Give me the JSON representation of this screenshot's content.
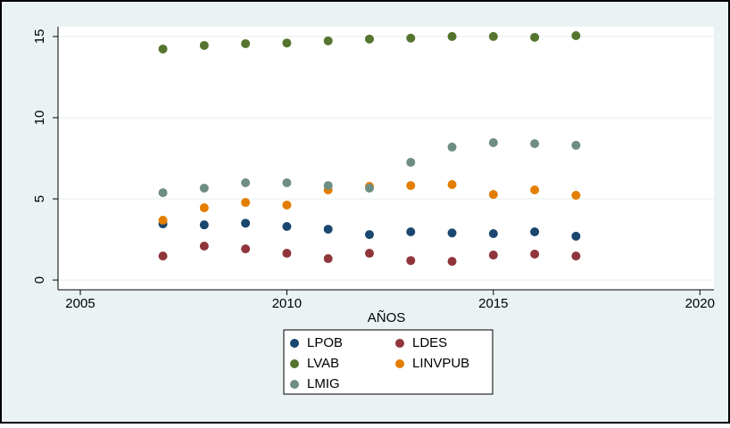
{
  "chart_data": {
    "type": "scatter",
    "x_label": "AÑOS",
    "x": [
      2007,
      2008,
      2009,
      2010,
      2011,
      2012,
      2013,
      2014,
      2015,
      2016,
      2017
    ],
    "series": [
      {
        "name": "LPOB",
        "color": "#1a476f",
        "values": [
          3.46,
          3.4,
          3.5,
          3.3,
          3.13,
          2.8,
          2.97,
          2.9,
          2.86,
          2.97,
          2.7
        ]
      },
      {
        "name": "LDES",
        "color": "#90353b",
        "values": [
          1.48,
          2.09,
          1.92,
          1.65,
          1.32,
          1.65,
          1.2,
          1.15,
          1.54,
          1.6,
          1.48
        ]
      },
      {
        "name": "LVAB",
        "color": "#55752f",
        "values": [
          14.23,
          14.45,
          14.56,
          14.6,
          14.73,
          14.84,
          14.9,
          15.0,
          15.0,
          14.95,
          15.05
        ]
      },
      {
        "name": "LINVPUB",
        "color": "#e37e00",
        "values": [
          3.68,
          4.45,
          4.78,
          4.62,
          5.55,
          5.77,
          5.82,
          5.88,
          5.27,
          5.55,
          5.22
        ]
      },
      {
        "name": "LMIG",
        "color": "#6e8e84",
        "values": [
          5.38,
          5.66,
          5.99,
          5.99,
          5.82,
          5.66,
          7.25,
          8.19,
          8.46,
          8.4,
          8.3
        ]
      }
    ],
    "xlim": [
      2004.46,
      2020.34
    ],
    "xticks": [
      2005,
      2010,
      2015,
      2020
    ],
    "ylim": [
      -0.6,
      15.6
    ],
    "yticks": [
      0,
      5,
      10,
      15
    ],
    "grid": true,
    "legend": "bottom"
  }
}
